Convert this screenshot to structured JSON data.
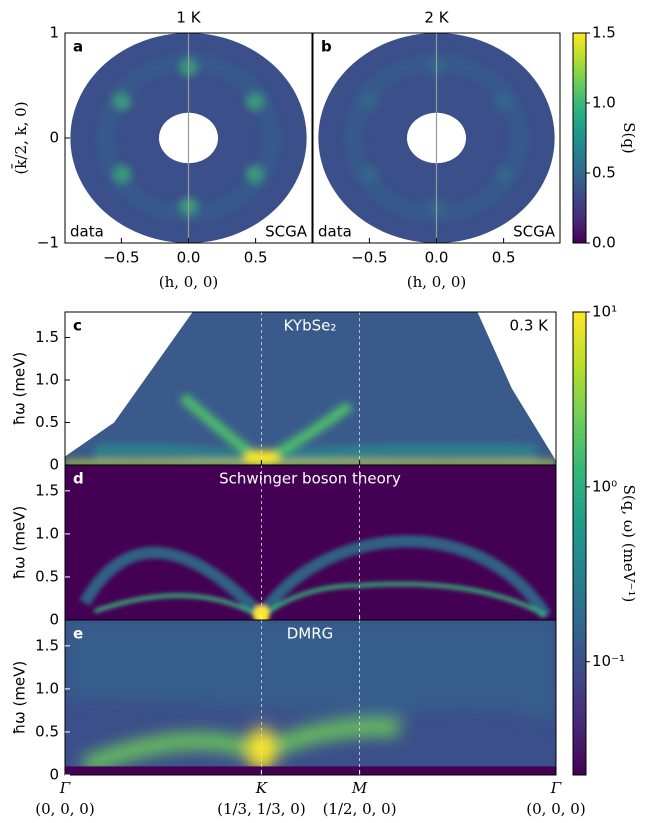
{
  "chart_data": [
    {
      "type": "map",
      "panel": "a",
      "title": "1 K",
      "left_note": "data",
      "right_note": "SCGA",
      "xlabel": "(h, 0, 0)",
      "ylabel": "(k̄/2, k, 0)",
      "xlim": [
        -0.92,
        0.92
      ],
      "ylim": [
        -1,
        1
      ],
      "xticks": [
        {
          "value": -0.5,
          "label": "−0.5"
        },
        {
          "value": 0,
          "label": "0.0"
        },
        0.5
      ],
      "yticks": [
        {
          "value": -1,
          "label": "−1"
        },
        0,
        1
      ]
    },
    {
      "type": "map",
      "panel": "b",
      "title": "2 K",
      "left_note": "data",
      "right_note": "SCGA",
      "xlabel": "(h, 0, 0)",
      "xlim": [
        -0.92,
        0.92
      ],
      "ylim": [
        -1,
        1
      ],
      "xticks": [
        {
          "value": -0.5,
          "label": "−0.5"
        },
        {
          "value": 0,
          "label": "0.0"
        },
        0.5
      ]
    },
    {
      "type": "colorbar",
      "label": "S(q)",
      "ylim": [
        0,
        1.5
      ],
      "yticks": [
        {
          "value": 0,
          "label": "0.0"
        },
        0.5,
        {
          "value": 1,
          "label": "1.0"
        },
        1.5
      ]
    },
    {
      "type": "spectrum",
      "panel": "c",
      "title": "KYbSe₂",
      "annotation": "0.3 K",
      "ylabel": "ħω (meV)",
      "ylim": [
        0,
        1.8
      ],
      "yticks": [
        0,
        0.5,
        {
          "value": 1,
          "label": "1.0"
        },
        1.5
      ]
    },
    {
      "type": "spectrum",
      "panel": "d",
      "title": "Schwinger boson theory",
      "ylabel": "ħω (meV)",
      "ylim": [
        0,
        1.8
      ],
      "yticks": [
        0,
        0.5,
        {
          "value": 1,
          "label": "1.0"
        },
        1.5
      ]
    },
    {
      "type": "spectrum",
      "panel": "e",
      "title": "DMRG",
      "ylabel": "ħω (meV)",
      "ylim": [
        0,
        1.8
      ],
      "yticks": [
        0,
        0.5,
        {
          "value": 1,
          "label": "1.0"
        },
        1.5
      ],
      "xlim": [
        0,
        5
      ],
      "xticks": [
        {
          "value": 0,
          "label": "Γ"
        },
        {
          "value": 2,
          "label": "K"
        },
        {
          "value": 3,
          "label": "M"
        },
        {
          "value": 5,
          "label": "Γ"
        }
      ],
      "xtick_sublabels": [
        "(0, 0, 0)",
        "(1/3, 1/3, 0)",
        "(1/2, 0, 0)",
        "(0, 0, 0)"
      ]
    },
    {
      "type": "colorbar",
      "log": true,
      "label": "S(q, ω) (meV⁻¹)",
      "ylim": [
        0.0225,
        10
      ],
      "yticks": [
        {
          "value": 10,
          "label": "10¹"
        },
        {
          "value": 1,
          "label": "10⁰"
        },
        {
          "value": 0.1,
          "label": "10⁻¹"
        }
      ]
    }
  ]
}
